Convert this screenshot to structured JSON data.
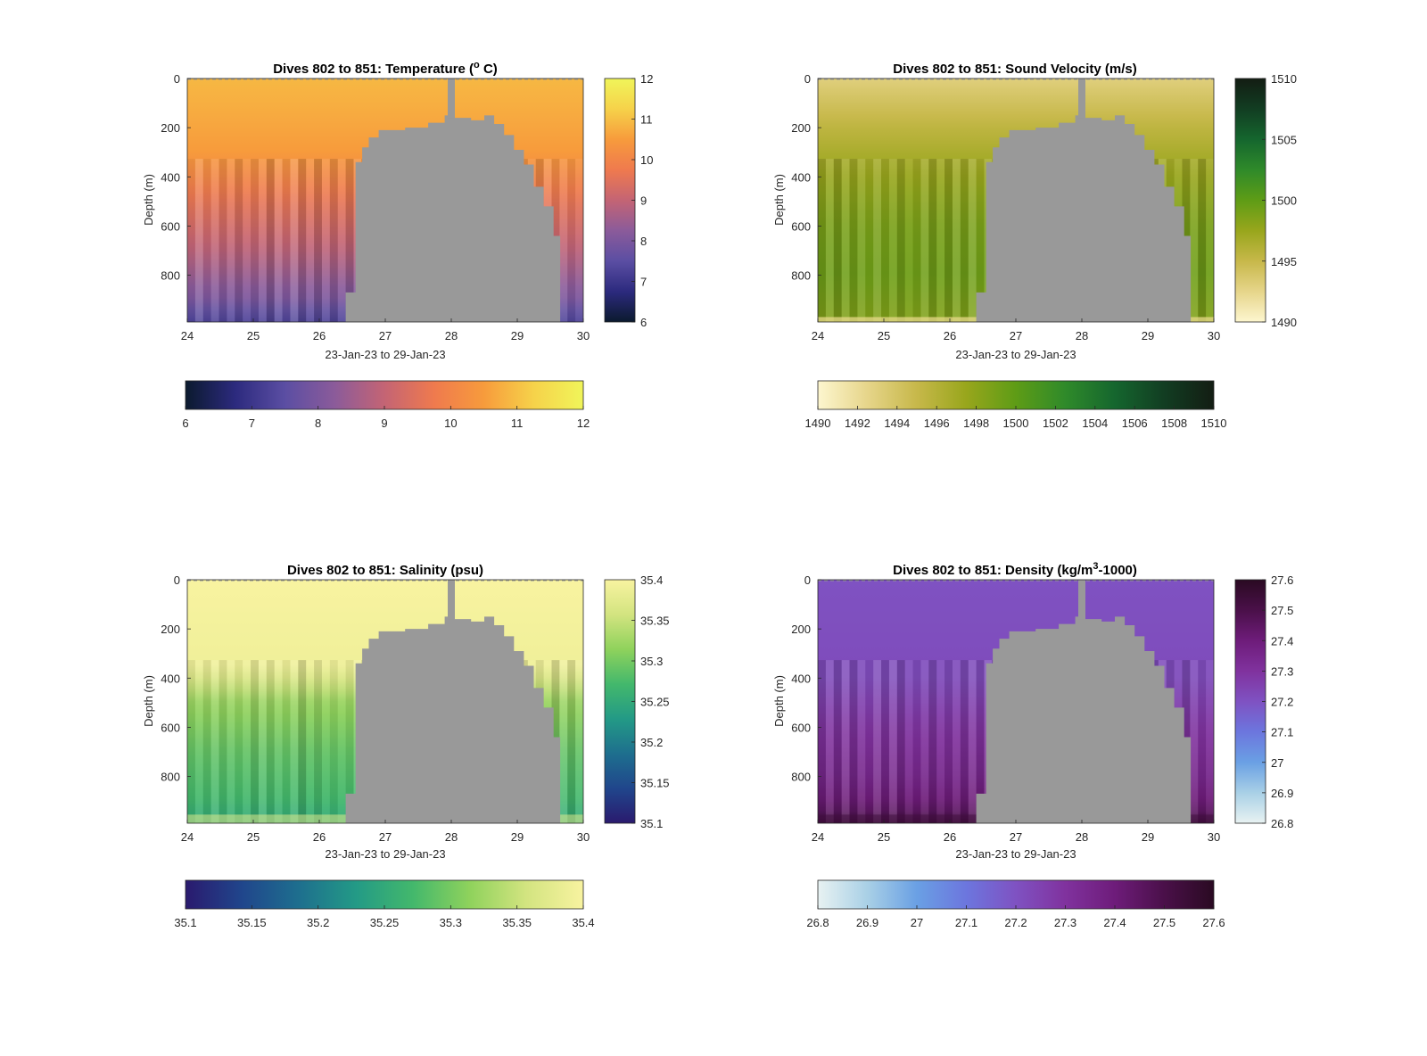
{
  "figure": {
    "background": "#ffffff",
    "land_color": "#999999"
  },
  "chart_data": [
    {
      "type": "heatmap",
      "title_prefix": "Dives 802 to 851: Temperature (",
      "title_sup": "o",
      "title_suffix": " C)",
      "xlabel": "23-Jan-23 to 29-Jan-23",
      "ylabel": "Depth (m)",
      "xlim": [
        24,
        30
      ],
      "ylim": [
        0,
        990
      ],
      "y_reversed": true,
      "xticks": [
        "24",
        "25",
        "26",
        "27",
        "28",
        "29",
        "30"
      ],
      "yticks": [
        "0",
        "200",
        "400",
        "600",
        "800"
      ],
      "colorbar_right_ticks": [
        "12",
        "11",
        "10",
        "9",
        "8",
        "7",
        "6"
      ],
      "colorbar_bottom_ticks": [
        "6",
        "7",
        "8",
        "9",
        "10",
        "11",
        "12"
      ],
      "clim": [
        6,
        12
      ],
      "colormap": [
        "#0b1a2e",
        "#2c2a7e",
        "#5b4ea3",
        "#8b5b9a",
        "#c46474",
        "#ef7a4e",
        "#f79b3c",
        "#f6d24a",
        "#f0f55a"
      ],
      "values_by_depth": [
        {
          "depth_m": 0,
          "value": 10.9
        },
        {
          "depth_m": 300,
          "value": 10.5
        },
        {
          "depth_m": 500,
          "value": 9.6
        },
        {
          "depth_m": 700,
          "value": 8.9
        },
        {
          "depth_m": 900,
          "value": 8.0
        },
        {
          "depth_m": 980,
          "value": 7.3
        }
      ],
      "bottom_band": "none"
    },
    {
      "type": "heatmap",
      "title_prefix": "Dives 802 to 851: Sound Velocity (m/s)",
      "title_sup": "",
      "title_suffix": "",
      "xlabel": "23-Jan-23 to 29-Jan-23",
      "ylabel": "Depth (m)",
      "xlim": [
        24,
        30
      ],
      "ylim": [
        0,
        990
      ],
      "y_reversed": true,
      "xticks": [
        "24",
        "25",
        "26",
        "27",
        "28",
        "29",
        "30"
      ],
      "yticks": [
        "0",
        "200",
        "400",
        "600",
        "800"
      ],
      "colorbar_right_ticks": [
        "1510",
        "1505",
        "1500",
        "1495",
        "1490"
      ],
      "colorbar_bottom_ticks": [
        "1490",
        "1492",
        "1494",
        "1496",
        "1498",
        "1500",
        "1502",
        "1504",
        "1506",
        "1508",
        "1510"
      ],
      "clim": [
        1490,
        1510
      ],
      "colormap": [
        "#fdf6cf",
        "#e6d58a",
        "#c7b84a",
        "#98a61c",
        "#5e9c16",
        "#2f8a2a",
        "#15662e",
        "#123d22",
        "#131d13"
      ],
      "values_by_depth": [
        {
          "depth_m": 0,
          "value": 1493.0
        },
        {
          "depth_m": 200,
          "value": 1495.5
        },
        {
          "depth_m": 400,
          "value": 1497.5
        },
        {
          "depth_m": 600,
          "value": 1498.8
        },
        {
          "depth_m": 800,
          "value": 1499.3
        },
        {
          "depth_m": 980,
          "value": 1498.5
        }
      ],
      "bottom_band": "light"
    },
    {
      "type": "heatmap",
      "title_prefix": "Dives 802 to 851: Salinity (psu)",
      "title_sup": "",
      "title_suffix": "",
      "xlabel": "23-Jan-23 to 29-Jan-23",
      "ylabel": "Depth (m)",
      "xlim": [
        24,
        30
      ],
      "ylim": [
        0,
        990
      ],
      "y_reversed": true,
      "xticks": [
        "24",
        "25",
        "26",
        "27",
        "28",
        "29",
        "30"
      ],
      "yticks": [
        "0",
        "200",
        "400",
        "600",
        "800"
      ],
      "colorbar_right_ticks": [
        "35.4",
        "35.35",
        "35.3",
        "35.25",
        "35.2",
        "35.15",
        "35.1"
      ],
      "colorbar_bottom_ticks": [
        "35.1",
        "35.15",
        "35.2",
        "35.25",
        "35.3",
        "35.35",
        "35.4"
      ],
      "clim": [
        35.1,
        35.4
      ],
      "colormap": [
        "#2a1a6e",
        "#20468c",
        "#1e6f8e",
        "#239a86",
        "#43b86c",
        "#8fd25c",
        "#d3e480",
        "#f8f3a0"
      ],
      "values_by_depth": [
        {
          "depth_m": 0,
          "value": 35.4
        },
        {
          "depth_m": 350,
          "value": 35.39
        },
        {
          "depth_m": 500,
          "value": 35.32
        },
        {
          "depth_m": 700,
          "value": 35.29
        },
        {
          "depth_m": 900,
          "value": 35.27
        },
        {
          "depth_m": 980,
          "value": 35.25
        }
      ],
      "bottom_band": "dark"
    },
    {
      "type": "heatmap",
      "title_prefix": "Dives 802 to 851: Density (kg/m",
      "title_sup": "3",
      "title_suffix": "-1000)",
      "xlabel": "23-Jan-23 to 29-Jan-23",
      "ylabel": "Depth (m)",
      "xlim": [
        24,
        30
      ],
      "ylim": [
        0,
        990
      ],
      "y_reversed": true,
      "xticks": [
        "24",
        "25",
        "26",
        "27",
        "28",
        "29",
        "30"
      ],
      "yticks": [
        "0",
        "200",
        "400",
        "600",
        "800"
      ],
      "colorbar_right_ticks": [
        "27.6",
        "27.5",
        "27.4",
        "27.3",
        "27.2",
        "27.1",
        "27",
        "26.9",
        "26.8"
      ],
      "colorbar_bottom_ticks": [
        "26.8",
        "26.9",
        "27",
        "27.1",
        "27.2",
        "27.3",
        "27.4",
        "27.5",
        "27.6"
      ],
      "clim": [
        26.8,
        27.6
      ],
      "colormap": [
        "#e8f2f2",
        "#a9d0e6",
        "#6aa0e4",
        "#6c76de",
        "#7f52c2",
        "#80329e",
        "#6e1c7a",
        "#4a1049",
        "#2a0a22"
      ],
      "values_by_depth": [
        {
          "depth_m": 0,
          "value": 27.2
        },
        {
          "depth_m": 400,
          "value": 27.22
        },
        {
          "depth_m": 600,
          "value": 27.29
        },
        {
          "depth_m": 800,
          "value": 27.35
        },
        {
          "depth_m": 930,
          "value": 27.42
        },
        {
          "depth_m": 985,
          "value": 27.55
        }
      ],
      "bottom_band": "dark"
    }
  ],
  "bathymetry": {
    "description_units": "day-of-month vs depth (m) of seafloor profile shown in grey",
    "profile": [
      {
        "x": 26.4,
        "depth": 870
      },
      {
        "x": 26.55,
        "depth": 340
      },
      {
        "x": 26.65,
        "depth": 280
      },
      {
        "x": 26.75,
        "depth": 240
      },
      {
        "x": 26.9,
        "depth": 210
      },
      {
        "x": 27.3,
        "depth": 200
      },
      {
        "x": 27.65,
        "depth": 180
      },
      {
        "x": 27.9,
        "depth": 150
      },
      {
        "x": 28.05,
        "depth": 160
      },
      {
        "x": 28.3,
        "depth": 170
      },
      {
        "x": 28.5,
        "depth": 150
      },
      {
        "x": 28.65,
        "depth": 185
      },
      {
        "x": 28.8,
        "depth": 230
      },
      {
        "x": 28.95,
        "depth": 290
      },
      {
        "x": 29.1,
        "depth": 350
      },
      {
        "x": 29.25,
        "depth": 440
      },
      {
        "x": 29.4,
        "depth": 520
      },
      {
        "x": 29.55,
        "depth": 640
      },
      {
        "x": 29.65,
        "depth": 990
      }
    ],
    "spike_x": 28.0
  }
}
